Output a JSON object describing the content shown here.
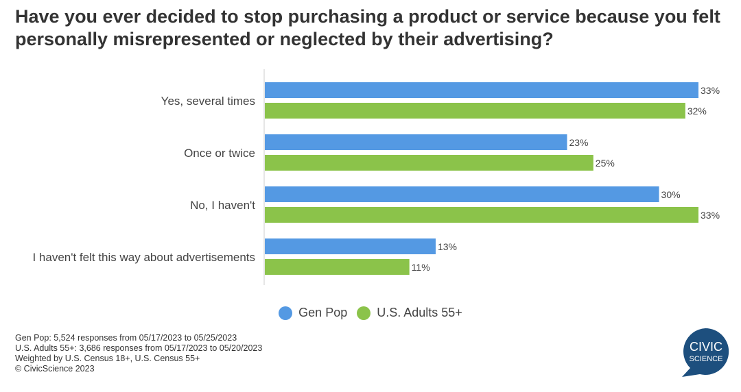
{
  "chart_data": {
    "type": "bar",
    "title": "Have you ever decided to stop purchasing a product or service because you felt personally misrepresented or neglected by their advertising?",
    "categories": [
      "Yes, several times",
      "Once or twice",
      "No, I haven't",
      "I haven't felt this way about advertisements"
    ],
    "series": [
      {
        "name": "Gen Pop",
        "color": "#5499e3",
        "values": [
          33,
          23,
          30,
          13
        ],
        "labels": [
          "33%",
          "23%",
          "30%",
          "13%"
        ]
      },
      {
        "name": "U.S. Adults 55+",
        "color": "#8bc34a",
        "values": [
          32,
          25,
          33,
          11
        ],
        "labels": [
          "32%",
          "25%",
          "33%",
          "11%"
        ]
      }
    ],
    "xlim": [
      0,
      33
    ],
    "legend_position": "bottom-center",
    "orientation": "horizontal"
  },
  "notes": [
    "Gen Pop: 5,524 responses from 05/17/2023 to 05/25/2023",
    "U.S. Adults 55+: 3,686 responses from 05/17/2023 to 05/20/2023",
    "Weighted by U.S. Census 18+, U.S. Census 55+",
    "© CivicScience 2023"
  ],
  "logo": {
    "line1": "CIVIC",
    "line2": "SCIENCE",
    "color": "#1d4f7e"
  }
}
